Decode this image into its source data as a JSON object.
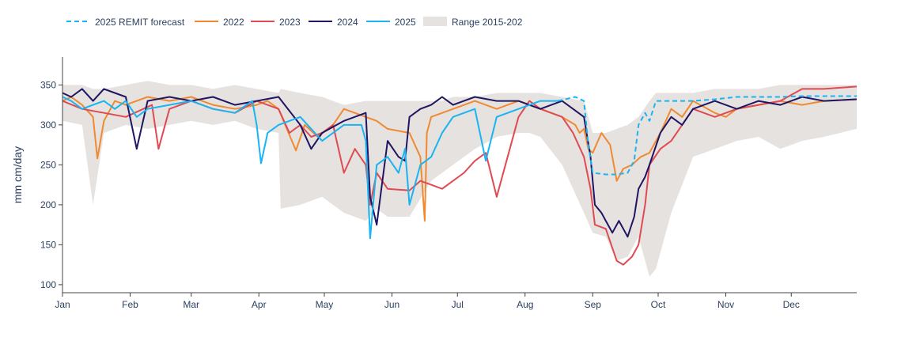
{
  "chart_data": {
    "type": "line",
    "title": "",
    "xlabel": "",
    "ylabel": "mm cm/day",
    "x_range_day": [
      1,
      365
    ],
    "ylim": [
      90,
      385
    ],
    "y_ticks": [
      100,
      150,
      200,
      250,
      300,
      350
    ],
    "x_ticks": [
      {
        "label": "Jan",
        "day": 1
      },
      {
        "label": "Feb",
        "day": 32
      },
      {
        "label": "Mar",
        "day": 60
      },
      {
        "label": "Apr",
        "day": 91
      },
      {
        "label": "May",
        "day": 121
      },
      {
        "label": "Jun",
        "day": 152
      },
      {
        "label": "Jul",
        "day": 182
      },
      {
        "label": "Aug",
        "day": 213
      },
      {
        "label": "Sep",
        "day": 244
      },
      {
        "label": "Oct",
        "day": 274
      },
      {
        "label": "Nov",
        "day": 305
      },
      {
        "label": "Dec",
        "day": 335
      }
    ],
    "grid": false,
    "legend_position": "top-left",
    "range_band": {
      "name": "Range 2015-202",
      "color": "#e6e2df",
      "days": [
        1,
        10,
        15,
        20,
        30,
        40,
        50,
        60,
        70,
        80,
        90,
        100,
        101,
        110,
        120,
        125,
        130,
        140,
        145,
        150,
        160,
        170,
        175,
        180,
        190,
        200,
        210,
        215,
        220,
        230,
        240,
        244,
        250,
        255,
        260,
        265,
        270,
        273,
        280,
        290,
        300,
        310,
        320,
        330,
        340,
        350,
        365
      ],
      "low": [
        305,
        300,
        200,
        290,
        300,
        295,
        300,
        305,
        300,
        305,
        295,
        290,
        195,
        200,
        210,
        200,
        190,
        180,
        195,
        185,
        185,
        230,
        240,
        250,
        270,
        285,
        290,
        290,
        285,
        250,
        190,
        165,
        160,
        130,
        135,
        160,
        110,
        120,
        190,
        260,
        270,
        280,
        285,
        270,
        280,
        285,
        295
      ],
      "high": [
        350,
        350,
        345,
        345,
        350,
        355,
        350,
        350,
        345,
        350,
        345,
        340,
        345,
        340,
        335,
        330,
        325,
        330,
        330,
        330,
        330,
        330,
        330,
        335,
        335,
        340,
        340,
        340,
        340,
        335,
        330,
        290,
        290,
        295,
        300,
        310,
        330,
        340,
        340,
        340,
        345,
        345,
        345,
        350,
        350,
        350,
        350
      ]
    },
    "series": [
      {
        "name": "2025 REMIT forecast",
        "color": "#19b4f2",
        "dash": true,
        "days": [
          228,
          236,
          240,
          242,
          244,
          250,
          255,
          260,
          263,
          265,
          268,
          270,
          273,
          280,
          290,
          300,
          310,
          320,
          330,
          340,
          365
        ],
        "values": [
          330,
          335,
          330,
          275,
          240,
          238,
          238,
          240,
          255,
          300,
          315,
          305,
          330,
          330,
          330,
          332,
          335,
          335,
          335,
          336,
          336
        ]
      },
      {
        "name": "2022",
        "color": "#f08a32",
        "dash": false,
        "days": [
          1,
          5,
          10,
          15,
          17,
          20,
          25,
          30,
          40,
          50,
          60,
          70,
          80,
          90,
          95,
          100,
          108,
          112,
          118,
          125,
          130,
          140,
          145,
          150,
          160,
          165,
          167,
          168,
          170,
          180,
          190,
          200,
          210,
          220,
          230,
          236,
          238,
          240,
          242,
          244,
          248,
          252,
          255,
          258,
          262,
          266,
          270,
          275,
          280,
          285,
          290,
          300,
          305,
          310,
          320,
          330,
          340,
          350,
          365
        ],
        "values": [
          330,
          335,
          325,
          310,
          258,
          305,
          330,
          325,
          335,
          330,
          335,
          325,
          320,
          325,
          330,
          320,
          268,
          300,
          285,
          300,
          320,
          310,
          305,
          295,
          290,
          260,
          180,
          290,
          310,
          320,
          330,
          320,
          330,
          320,
          310,
          300,
          290,
          295,
          270,
          265,
          290,
          275,
          230,
          245,
          250,
          260,
          265,
          290,
          320,
          310,
          330,
          315,
          310,
          320,
          325,
          330,
          325,
          330,
          332
        ]
      },
      {
        "name": "2023",
        "color": "#e04a53",
        "dash": false,
        "days": [
          1,
          10,
          20,
          30,
          42,
          45,
          50,
          60,
          70,
          80,
          90,
          100,
          105,
          110,
          115,
          120,
          125,
          130,
          135,
          140,
          142,
          145,
          150,
          160,
          165,
          170,
          175,
          180,
          185,
          190,
          195,
          200,
          210,
          215,
          220,
          230,
          235,
          240,
          243,
          245,
          250,
          255,
          258,
          262,
          265,
          268,
          270,
          275,
          280,
          285,
          290,
          300,
          310,
          320,
          330,
          340,
          350,
          365
        ],
        "values": [
          330,
          320,
          315,
          310,
          325,
          270,
          320,
          330,
          320,
          315,
          330,
          320,
          290,
          300,
          285,
          290,
          300,
          240,
          270,
          250,
          200,
          240,
          220,
          218,
          230,
          225,
          220,
          230,
          240,
          255,
          265,
          210,
          310,
          330,
          320,
          310,
          290,
          260,
          220,
          175,
          170,
          130,
          125,
          135,
          150,
          200,
          250,
          270,
          280,
          300,
          320,
          310,
          320,
          325,
          330,
          345,
          345,
          348
        ]
      },
      {
        "name": "2024",
        "color": "#1f1563",
        "dash": false,
        "days": [
          1,
          5,
          10,
          15,
          20,
          25,
          30,
          35,
          40,
          50,
          60,
          70,
          80,
          90,
          100,
          110,
          115,
          120,
          130,
          140,
          142,
          145,
          150,
          155,
          158,
          160,
          165,
          170,
          175,
          180,
          190,
          200,
          210,
          220,
          230,
          235,
          240,
          243,
          245,
          248,
          250,
          253,
          256,
          258,
          260,
          263,
          265,
          268,
          270,
          275,
          280,
          285,
          290,
          295,
          300,
          310,
          320,
          330,
          340,
          350,
          365
        ],
        "values": [
          340,
          335,
          345,
          330,
          345,
          340,
          335,
          270,
          330,
          335,
          330,
          335,
          325,
          330,
          335,
          300,
          270,
          290,
          305,
          315,
          210,
          175,
          280,
          260,
          255,
          310,
          320,
          325,
          335,
          325,
          335,
          330,
          330,
          320,
          330,
          320,
          310,
          260,
          200,
          190,
          180,
          165,
          180,
          170,
          160,
          185,
          220,
          235,
          250,
          290,
          310,
          300,
          320,
          325,
          330,
          320,
          330,
          325,
          335,
          330,
          332
        ]
      },
      {
        "name": "2025",
        "color": "#19b4f2",
        "dash": false,
        "days": [
          1,
          5,
          10,
          15,
          20,
          25,
          30,
          35,
          40,
          50,
          60,
          70,
          80,
          88,
          90,
          92,
          95,
          100,
          110,
          120,
          130,
          138,
          140,
          142,
          145,
          150,
          155,
          158,
          160,
          165,
          170,
          175,
          180,
          190,
          195,
          200,
          210,
          220,
          228
        ],
        "values": [
          335,
          330,
          320,
          325,
          330,
          320,
          330,
          310,
          320,
          325,
          330,
          320,
          315,
          330,
          300,
          252,
          290,
          300,
          310,
          280,
          300,
          300,
          280,
          158,
          250,
          260,
          240,
          270,
          200,
          250,
          260,
          290,
          310,
          320,
          255,
          310,
          320,
          330,
          330
        ]
      }
    ]
  }
}
